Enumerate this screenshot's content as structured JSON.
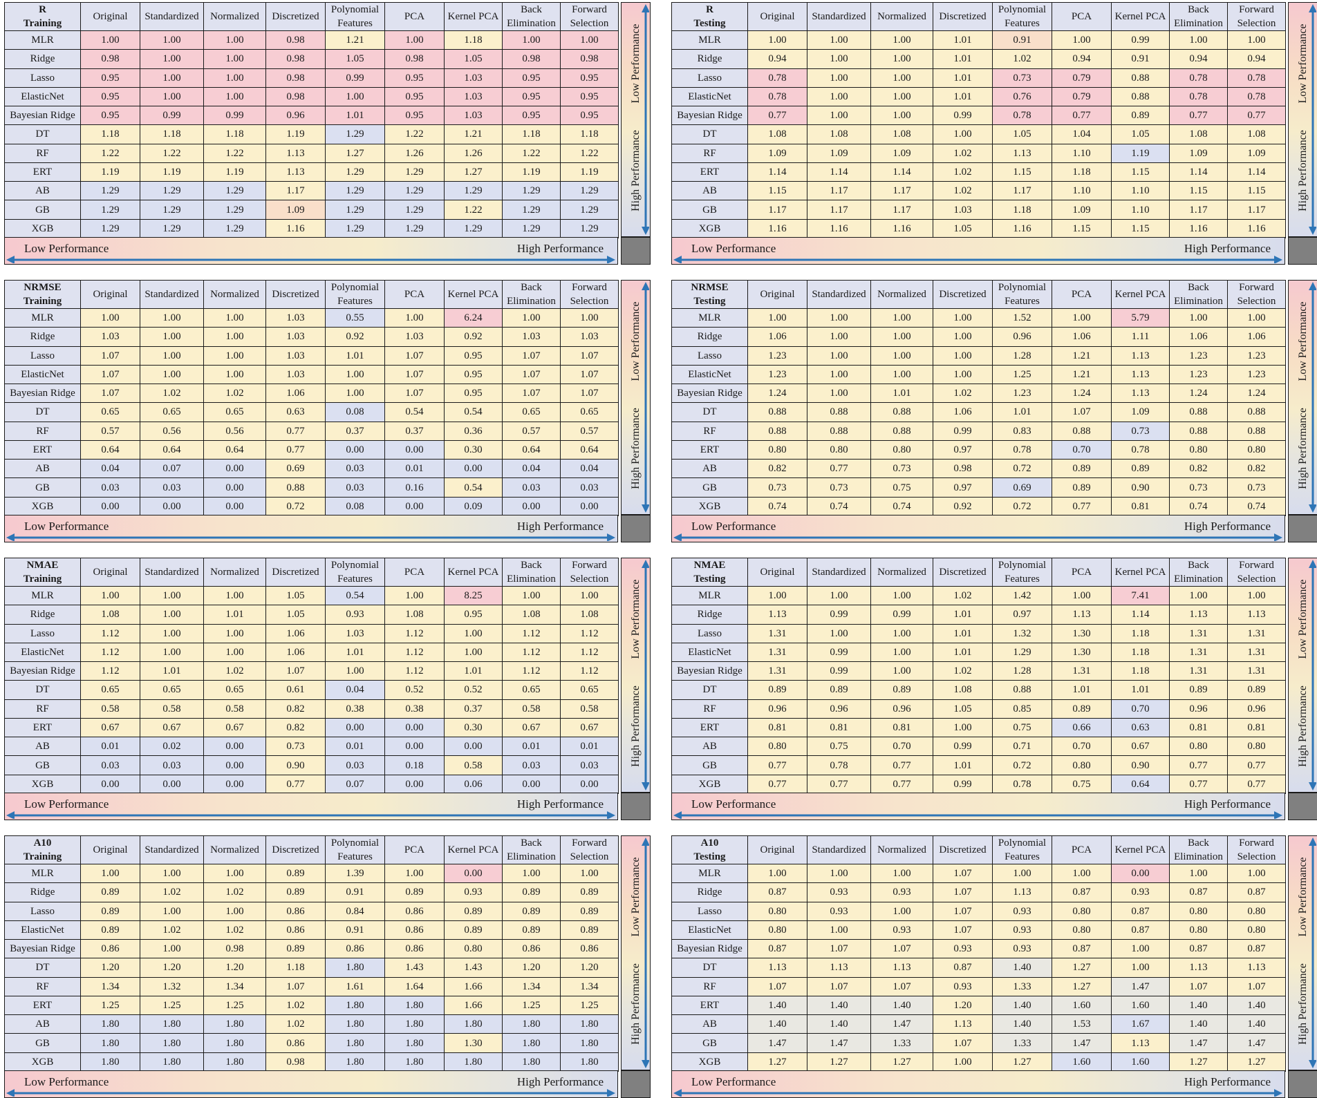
{
  "colors": {
    "red": "#f7cdd3",
    "orange": "#f9dfca",
    "yellow": "#fbf0cc",
    "gray": "#e9e8e2",
    "blue": "#dbe0f1",
    "header": "#dfe2f0",
    "arrow": "#2e75b6",
    "corner": "#808080"
  },
  "labels": {
    "low_performance": "Low Performance",
    "high_performance": "High Performance"
  },
  "columns": [
    "Original",
    "Standardized",
    "Normalized",
    "Discretized",
    "Polynomial Features",
    "PCA",
    "Kernel PCA",
    "Back Elimination",
    "Forward Selection"
  ],
  "rows": [
    "MLR",
    "Ridge",
    "Lasso",
    "ElasticNet",
    "Bayesian Ridge",
    "DT",
    "RF",
    "ERT",
    "AB",
    "GB",
    "XGB"
  ],
  "chart_data": [
    {
      "type": "table",
      "title_line1": "R",
      "title_line2": "Training",
      "values": [
        [
          "1.00",
          "1.00",
          "1.00",
          "0.98",
          "1.21",
          "1.00",
          "1.18",
          "1.00",
          "1.00"
        ],
        [
          "0.98",
          "1.00",
          "1.00",
          "0.98",
          "1.05",
          "0.98",
          "1.05",
          "0.98",
          "0.98"
        ],
        [
          "0.95",
          "1.00",
          "1.00",
          "0.98",
          "0.99",
          "0.95",
          "1.03",
          "0.95",
          "0.95"
        ],
        [
          "0.95",
          "1.00",
          "1.00",
          "0.98",
          "1.00",
          "0.95",
          "1.03",
          "0.95",
          "0.95"
        ],
        [
          "0.95",
          "0.99",
          "0.99",
          "0.96",
          "1.01",
          "0.95",
          "1.03",
          "0.95",
          "0.95"
        ],
        [
          "1.18",
          "1.18",
          "1.18",
          "1.19",
          "1.29",
          "1.22",
          "1.21",
          "1.18",
          "1.18"
        ],
        [
          "1.22",
          "1.22",
          "1.22",
          "1.13",
          "1.27",
          "1.26",
          "1.26",
          "1.22",
          "1.22"
        ],
        [
          "1.19",
          "1.19",
          "1.19",
          "1.13",
          "1.29",
          "1.29",
          "1.27",
          "1.19",
          "1.19"
        ],
        [
          "1.29",
          "1.29",
          "1.29",
          "1.17",
          "1.29",
          "1.29",
          "1.29",
          "1.29",
          "1.29"
        ],
        [
          "1.29",
          "1.29",
          "1.29",
          "1.09",
          "1.29",
          "1.29",
          "1.22",
          "1.29",
          "1.29"
        ],
        [
          "1.29",
          "1.29",
          "1.29",
          "1.16",
          "1.29",
          "1.29",
          "1.29",
          "1.29",
          "1.29"
        ]
      ],
      "colors": [
        "RRRRYRYRR",
        "RRRRRRRRR",
        "RRRRRRRRR",
        "RRRRRRRRR",
        "RRRRRRRRR",
        "YYYYBYYYY",
        "YYYYYYYYY",
        "YYYYYYYYY",
        "BBBYBBBBB",
        "BBBOBBYBB",
        "BBBYBBBBB"
      ]
    },
    {
      "type": "table",
      "title_line1": "R",
      "title_line2": "Testing",
      "values": [
        [
          "1.00",
          "1.00",
          "1.00",
          "1.01",
          "0.91",
          "1.00",
          "0.99",
          "1.00",
          "1.00"
        ],
        [
          "0.94",
          "1.00",
          "1.00",
          "1.01",
          "1.02",
          "0.94",
          "0.91",
          "0.94",
          "0.94"
        ],
        [
          "0.78",
          "1.00",
          "1.00",
          "1.01",
          "0.73",
          "0.79",
          "0.88",
          "0.78",
          "0.78"
        ],
        [
          "0.78",
          "1.00",
          "1.00",
          "1.01",
          "0.76",
          "0.79",
          "0.88",
          "0.78",
          "0.78"
        ],
        [
          "0.77",
          "1.00",
          "1.00",
          "0.99",
          "0.78",
          "0.77",
          "0.89",
          "0.77",
          "0.77"
        ],
        [
          "1.08",
          "1.08",
          "1.08",
          "1.00",
          "1.05",
          "1.04",
          "1.05",
          "1.08",
          "1.08"
        ],
        [
          "1.09",
          "1.09",
          "1.09",
          "1.02",
          "1.13",
          "1.10",
          "1.19",
          "1.09",
          "1.09"
        ],
        [
          "1.14",
          "1.14",
          "1.14",
          "1.02",
          "1.15",
          "1.18",
          "1.15",
          "1.14",
          "1.14"
        ],
        [
          "1.15",
          "1.17",
          "1.17",
          "1.02",
          "1.17",
          "1.10",
          "1.10",
          "1.15",
          "1.15"
        ],
        [
          "1.17",
          "1.17",
          "1.17",
          "1.03",
          "1.18",
          "1.09",
          "1.10",
          "1.17",
          "1.17"
        ],
        [
          "1.16",
          "1.16",
          "1.16",
          "1.05",
          "1.16",
          "1.15",
          "1.15",
          "1.16",
          "1.16"
        ]
      ],
      "colors": [
        "YYYYOYYYY",
        "YYYYYYYYY",
        "RYYYRRYRR",
        "RYYYRRYRR",
        "RYYYRRYRR",
        "YYYYYYYYY",
        "YYYYYYBYY",
        "YYYYYYYYY",
        "YYYYYYYYY",
        "YYYYYYYYY",
        "YYYYYYYYY"
      ]
    },
    {
      "type": "table",
      "title_line1": "NRMSE",
      "title_line2": "Training",
      "values": [
        [
          "1.00",
          "1.00",
          "1.00",
          "1.03",
          "0.55",
          "1.00",
          "6.24",
          "1.00",
          "1.00"
        ],
        [
          "1.03",
          "1.00",
          "1.00",
          "1.03",
          "0.92",
          "1.03",
          "0.92",
          "1.03",
          "1.03"
        ],
        [
          "1.07",
          "1.00",
          "1.00",
          "1.03",
          "1.01",
          "1.07",
          "0.95",
          "1.07",
          "1.07"
        ],
        [
          "1.07",
          "1.00",
          "1.00",
          "1.03",
          "1.00",
          "1.07",
          "0.95",
          "1.07",
          "1.07"
        ],
        [
          "1.07",
          "1.02",
          "1.02",
          "1.06",
          "1.00",
          "1.07",
          "0.95",
          "1.07",
          "1.07"
        ],
        [
          "0.65",
          "0.65",
          "0.65",
          "0.63",
          "0.08",
          "0.54",
          "0.54",
          "0.65",
          "0.65"
        ],
        [
          "0.57",
          "0.56",
          "0.56",
          "0.77",
          "0.37",
          "0.37",
          "0.36",
          "0.57",
          "0.57"
        ],
        [
          "0.64",
          "0.64",
          "0.64",
          "0.77",
          "0.00",
          "0.00",
          "0.30",
          "0.64",
          "0.64"
        ],
        [
          "0.04",
          "0.07",
          "0.00",
          "0.69",
          "0.03",
          "0.01",
          "0.00",
          "0.04",
          "0.04"
        ],
        [
          "0.03",
          "0.03",
          "0.00",
          "0.88",
          "0.03",
          "0.16",
          "0.54",
          "0.03",
          "0.03"
        ],
        [
          "0.00",
          "0.00",
          "0.00",
          "0.72",
          "0.08",
          "0.00",
          "0.09",
          "0.00",
          "0.00"
        ]
      ],
      "colors": [
        "YYYYBYRYY",
        "YYYYYYYYY",
        "YYYYYYYYY",
        "YYYYYYYYY",
        "YYYYYYYYY",
        "YYYYBYYYY",
        "YYYYYYYYY",
        "YYYYBBYYY",
        "BBBYBBBBB",
        "BBBYBBYBB",
        "BBBYBBBBB"
      ]
    },
    {
      "type": "table",
      "title_line1": "NRMSE",
      "title_line2": "Testing",
      "values": [
        [
          "1.00",
          "1.00",
          "1.00",
          "1.00",
          "1.52",
          "1.00",
          "5.79",
          "1.00",
          "1.00"
        ],
        [
          "1.06",
          "1.00",
          "1.00",
          "1.00",
          "0.96",
          "1.06",
          "1.11",
          "1.06",
          "1.06"
        ],
        [
          "1.23",
          "1.00",
          "1.00",
          "1.00",
          "1.28",
          "1.21",
          "1.13",
          "1.23",
          "1.23"
        ],
        [
          "1.23",
          "1.00",
          "1.00",
          "1.00",
          "1.25",
          "1.21",
          "1.13",
          "1.23",
          "1.23"
        ],
        [
          "1.24",
          "1.00",
          "1.01",
          "1.02",
          "1.23",
          "1.24",
          "1.13",
          "1.24",
          "1.24"
        ],
        [
          "0.88",
          "0.88",
          "0.88",
          "1.06",
          "1.01",
          "1.07",
          "1.09",
          "0.88",
          "0.88"
        ],
        [
          "0.88",
          "0.88",
          "0.88",
          "0.99",
          "0.83",
          "0.88",
          "0.73",
          "0.88",
          "0.88"
        ],
        [
          "0.80",
          "0.80",
          "0.80",
          "0.97",
          "0.78",
          "0.70",
          "0.78",
          "0.80",
          "0.80"
        ],
        [
          "0.82",
          "0.77",
          "0.73",
          "0.98",
          "0.72",
          "0.89",
          "0.89",
          "0.82",
          "0.82"
        ],
        [
          "0.73",
          "0.73",
          "0.75",
          "0.97",
          "0.69",
          "0.89",
          "0.90",
          "0.73",
          "0.73"
        ],
        [
          "0.74",
          "0.74",
          "0.74",
          "0.92",
          "0.72",
          "0.77",
          "0.81",
          "0.74",
          "0.74"
        ]
      ],
      "colors": [
        "YYYYYYRYY",
        "YYYYYYYYY",
        "YYYYYYYYY",
        "YYYYYYYYY",
        "YYYYYYYYY",
        "YYYYYYYYY",
        "YYYYYYBYY",
        "YYYYYBYYY",
        "YYYYYYYYY",
        "YYYYBYYYY",
        "YYYYYYYYY"
      ]
    },
    {
      "type": "table",
      "title_line1": "NMAE",
      "title_line2": "Training",
      "values": [
        [
          "1.00",
          "1.00",
          "1.00",
          "1.05",
          "0.54",
          "1.00",
          "8.25",
          "1.00",
          "1.00"
        ],
        [
          "1.08",
          "1.00",
          "1.01",
          "1.05",
          "0.93",
          "1.08",
          "0.95",
          "1.08",
          "1.08"
        ],
        [
          "1.12",
          "1.00",
          "1.00",
          "1.06",
          "1.03",
          "1.12",
          "1.00",
          "1.12",
          "1.12"
        ],
        [
          "1.12",
          "1.00",
          "1.00",
          "1.06",
          "1.01",
          "1.12",
          "1.00",
          "1.12",
          "1.12"
        ],
        [
          "1.12",
          "1.01",
          "1.02",
          "1.07",
          "1.00",
          "1.12",
          "1.01",
          "1.12",
          "1.12"
        ],
        [
          "0.65",
          "0.65",
          "0.65",
          "0.61",
          "0.04",
          "0.52",
          "0.52",
          "0.65",
          "0.65"
        ],
        [
          "0.58",
          "0.58",
          "0.58",
          "0.82",
          "0.38",
          "0.38",
          "0.37",
          "0.58",
          "0.58"
        ],
        [
          "0.67",
          "0.67",
          "0.67",
          "0.82",
          "0.00",
          "0.00",
          "0.30",
          "0.67",
          "0.67"
        ],
        [
          "0.01",
          "0.02",
          "0.00",
          "0.73",
          "0.01",
          "0.00",
          "0.00",
          "0.01",
          "0.01"
        ],
        [
          "0.03",
          "0.03",
          "0.00",
          "0.90",
          "0.03",
          "0.18",
          "0.58",
          "0.03",
          "0.03"
        ],
        [
          "0.00",
          "0.00",
          "0.00",
          "0.77",
          "0.07",
          "0.00",
          "0.06",
          "0.00",
          "0.00"
        ]
      ],
      "colors": [
        "YYYYBYRYY",
        "YYYYYYYYY",
        "YYYYYYYYY",
        "YYYYYYYYY",
        "YYYYYYYYY",
        "YYYYBYYYY",
        "YYYYYYYYY",
        "YYYYBBYYY",
        "BBBYBBBBB",
        "BBBYBBYBB",
        "BBBYBBBBB"
      ]
    },
    {
      "type": "table",
      "title_line1": "NMAE",
      "title_line2": "Testing",
      "values": [
        [
          "1.00",
          "1.00",
          "1.00",
          "1.02",
          "1.42",
          "1.00",
          "7.41",
          "1.00",
          "1.00"
        ],
        [
          "1.13",
          "0.99",
          "0.99",
          "1.01",
          "0.97",
          "1.13",
          "1.14",
          "1.13",
          "1.13"
        ],
        [
          "1.31",
          "1.00",
          "1.00",
          "1.01",
          "1.32",
          "1.30",
          "1.18",
          "1.31",
          "1.31"
        ],
        [
          "1.31",
          "0.99",
          "1.00",
          "1.01",
          "1.29",
          "1.30",
          "1.18",
          "1.31",
          "1.31"
        ],
        [
          "1.31",
          "0.99",
          "1.00",
          "1.02",
          "1.28",
          "1.31",
          "1.18",
          "1.31",
          "1.31"
        ],
        [
          "0.89",
          "0.89",
          "0.89",
          "1.08",
          "0.88",
          "1.01",
          "1.01",
          "0.89",
          "0.89"
        ],
        [
          "0.96",
          "0.96",
          "0.96",
          "1.05",
          "0.85",
          "0.89",
          "0.70",
          "0.96",
          "0.96"
        ],
        [
          "0.81",
          "0.81",
          "0.81",
          "1.00",
          "0.75",
          "0.66",
          "0.63",
          "0.81",
          "0.81"
        ],
        [
          "0.80",
          "0.75",
          "0.70",
          "0.99",
          "0.71",
          "0.70",
          "0.67",
          "0.80",
          "0.80"
        ],
        [
          "0.77",
          "0.78",
          "0.77",
          "1.01",
          "0.72",
          "0.80",
          "0.90",
          "0.77",
          "0.77"
        ],
        [
          "0.77",
          "0.77",
          "0.77",
          "0.99",
          "0.78",
          "0.75",
          "0.64",
          "0.77",
          "0.77"
        ]
      ],
      "colors": [
        "YYYYYYRYY",
        "YYYYYYYYY",
        "YYYYYYYYY",
        "YYYYYYYYY",
        "YYYYYYYYY",
        "YYYYYYYYY",
        "YYYYYYBYY",
        "YYYYYBBYY",
        "YYYYYYYYY",
        "YYYYYYYYY",
        "YYYYYYBYY"
      ]
    },
    {
      "type": "table",
      "title_line1": "A10",
      "title_line2": "Training",
      "values": [
        [
          "1.00",
          "1.00",
          "1.00",
          "0.89",
          "1.39",
          "1.00",
          "0.00",
          "1.00",
          "1.00"
        ],
        [
          "0.89",
          "1.02",
          "1.02",
          "0.89",
          "0.91",
          "0.89",
          "0.93",
          "0.89",
          "0.89"
        ],
        [
          "0.89",
          "1.00",
          "1.00",
          "0.86",
          "0.84",
          "0.86",
          "0.89",
          "0.89",
          "0.89"
        ],
        [
          "0.89",
          "1.02",
          "1.02",
          "0.86",
          "0.91",
          "0.86",
          "0.89",
          "0.89",
          "0.89"
        ],
        [
          "0.86",
          "1.00",
          "0.98",
          "0.89",
          "0.86",
          "0.86",
          "0.80",
          "0.86",
          "0.86"
        ],
        [
          "1.20",
          "1.20",
          "1.20",
          "1.18",
          "1.80",
          "1.43",
          "1.43",
          "1.20",
          "1.20"
        ],
        [
          "1.34",
          "1.32",
          "1.34",
          "1.07",
          "1.61",
          "1.64",
          "1.66",
          "1.34",
          "1.34"
        ],
        [
          "1.25",
          "1.25",
          "1.25",
          "1.02",
          "1.80",
          "1.80",
          "1.66",
          "1.25",
          "1.25"
        ],
        [
          "1.80",
          "1.80",
          "1.80",
          "1.02",
          "1.80",
          "1.80",
          "1.80",
          "1.80",
          "1.80"
        ],
        [
          "1.80",
          "1.80",
          "1.80",
          "0.86",
          "1.80",
          "1.80",
          "1.30",
          "1.80",
          "1.80"
        ],
        [
          "1.80",
          "1.80",
          "1.80",
          "0.98",
          "1.80",
          "1.80",
          "1.80",
          "1.80",
          "1.80"
        ]
      ],
      "colors": [
        "YYYYYYRYY",
        "YYYYYYYYY",
        "YYYYYYYYY",
        "YYYYYYYYY",
        "YYYYYYYYY",
        "YYYYBYYYY",
        "YYYYYYYYY",
        "YYYYBBYYY",
        "BBBYBBBBB",
        "BBBYBBYBB",
        "BBBYBBBBB"
      ]
    },
    {
      "type": "table",
      "title_line1": "A10",
      "title_line2": "Testing",
      "values": [
        [
          "1.00",
          "1.00",
          "1.00",
          "1.07",
          "1.00",
          "1.00",
          "0.00",
          "1.00",
          "1.00"
        ],
        [
          "0.87",
          "0.93",
          "0.93",
          "1.07",
          "1.13",
          "0.87",
          "0.93",
          "0.87",
          "0.87"
        ],
        [
          "0.80",
          "0.93",
          "1.00",
          "1.07",
          "0.93",
          "0.80",
          "0.87",
          "0.80",
          "0.80"
        ],
        [
          "0.80",
          "1.00",
          "0.93",
          "1.07",
          "0.93",
          "0.80",
          "0.87",
          "0.80",
          "0.80"
        ],
        [
          "0.87",
          "1.07",
          "1.07",
          "0.93",
          "0.93",
          "0.87",
          "1.00",
          "0.87",
          "0.87"
        ],
        [
          "1.13",
          "1.13",
          "1.13",
          "0.87",
          "1.40",
          "1.27",
          "1.00",
          "1.13",
          "1.13"
        ],
        [
          "1.07",
          "1.07",
          "1.07",
          "0.93",
          "1.33",
          "1.27",
          "1.47",
          "1.07",
          "1.07"
        ],
        [
          "1.40",
          "1.40",
          "1.40",
          "1.20",
          "1.40",
          "1.60",
          "1.60",
          "1.40",
          "1.40"
        ],
        [
          "1.40",
          "1.40",
          "1.47",
          "1.13",
          "1.40",
          "1.53",
          "1.67",
          "1.40",
          "1.40"
        ],
        [
          "1.47",
          "1.47",
          "1.33",
          "1.07",
          "1.33",
          "1.47",
          "1.13",
          "1.47",
          "1.47"
        ],
        [
          "1.27",
          "1.27",
          "1.27",
          "1.00",
          "1.27",
          "1.60",
          "1.60",
          "1.27",
          "1.27"
        ]
      ],
      "colors": [
        "YYYYYYRYY",
        "YYYYYYYYY",
        "YYYYYYYYY",
        "YYYYYYYYY",
        "YYYYYYYYY",
        "YYYYGYYYY",
        "YYYYYYGYY",
        "GGGYGGGGG",
        "GGGYGGBGG",
        "GGGYGGYGG",
        "YYYYYBBYY"
      ]
    }
  ]
}
